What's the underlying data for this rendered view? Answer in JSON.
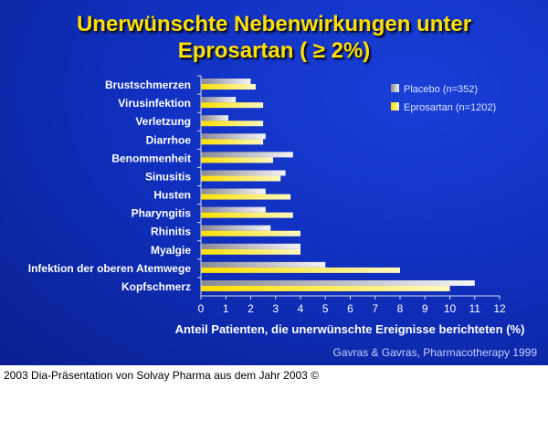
{
  "title_line1": "Unerwünschte Nebenwirkungen unter",
  "title_line2": "Eprosartan ( ≥ 2%)",
  "source": "Gavras & Gavras, Pharmacotherapy 1999",
  "caption": "2003 Dia-Präsentation von Solvay Pharma aus dem Jahr 2003 ©",
  "chart_data": {
    "type": "bar",
    "orientation": "horizontal",
    "categories": [
      "Brustschmerzen",
      "Virusinfektion",
      "Verletzung",
      "Diarrhoe",
      "Benommenheit",
      "Sinusitis",
      "Husten",
      "Pharyngitis",
      "Rhinitis",
      "Myalgie",
      "Infektion der oberen Atemwege",
      "Kopfschmerz"
    ],
    "series": [
      {
        "name": "Placebo (n=352)",
        "color": "#d8d8e0",
        "values": [
          2.0,
          1.4,
          1.1,
          2.6,
          3.7,
          3.4,
          2.6,
          2.6,
          2.8,
          4.0,
          5.0,
          11.0
        ]
      },
      {
        "name": "Eprosartan (n=1202)",
        "color": "#ffe830",
        "values": [
          2.2,
          2.5,
          2.5,
          2.5,
          2.9,
          3.2,
          3.6,
          3.7,
          4.0,
          4.0,
          8.0,
          10.0
        ]
      }
    ],
    "xlabel": "Anteil Patienten, die unerwünschte Ereignisse berichteten (%)",
    "xlim": [
      0,
      12
    ],
    "xticks": [
      0,
      1,
      2,
      3,
      4,
      5,
      6,
      7,
      8,
      9,
      10,
      11,
      12
    ],
    "legend": "top-right",
    "grid": false
  }
}
